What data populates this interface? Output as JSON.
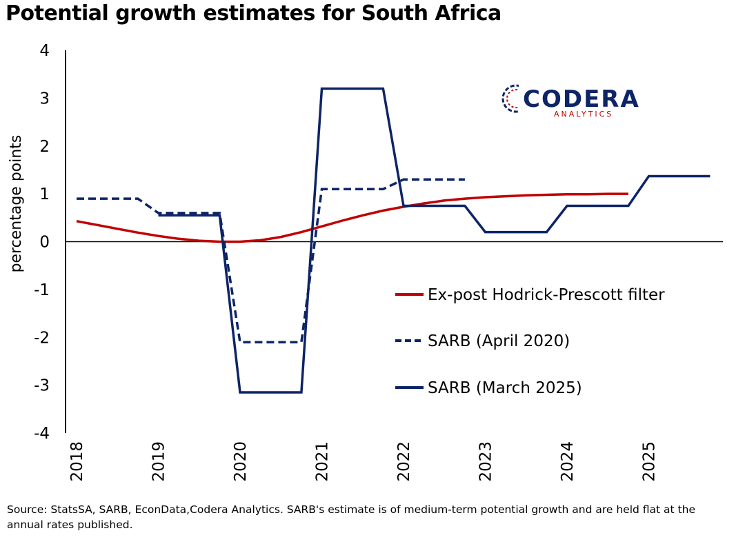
{
  "title": "Potential growth estimates for South Africa",
  "source_note": "Source: StatsSA, SARB, EconData,Codera Analytics. SARB's estimate is of medium-term potential growth and are held flat at the annual rates published.",
  "logo": {
    "main": "CODERA",
    "sub": "ANALYTICS"
  },
  "colors": {
    "hp": "#c00000",
    "sarb": "#0d2467",
    "axis": "#000000"
  },
  "chart_data": {
    "type": "line",
    "title": "Potential growth estimates for South Africa",
    "xlabel": "",
    "ylabel": "percentage points",
    "ylim": [
      -4,
      4
    ],
    "yticks": [
      4,
      3,
      2,
      1,
      0,
      -1,
      -2,
      -3,
      -4
    ],
    "xlim": [
      2018,
      2025.75
    ],
    "xticks": [
      2018,
      2019,
      2020,
      2021,
      2022,
      2023,
      2024,
      2025
    ],
    "grid": false,
    "legend_position": "bottom-right",
    "series": [
      {
        "name": "Ex-post Hodrick-Prescott filter",
        "style": "solid",
        "color": "#c00000",
        "x": [
          2018,
          2018.25,
          2018.5,
          2018.75,
          2019,
          2019.25,
          2019.5,
          2019.75,
          2020,
          2020.25,
          2020.5,
          2020.75,
          2021,
          2021.25,
          2021.5,
          2021.75,
          2022,
          2022.25,
          2022.5,
          2022.75,
          2023,
          2023.25,
          2023.5,
          2023.75,
          2024,
          2024.25,
          2024.5,
          2024.75
        ],
        "y": [
          0.43,
          0.35,
          0.27,
          0.19,
          0.12,
          0.06,
          0.02,
          0.0,
          0.0,
          0.03,
          0.1,
          0.2,
          0.32,
          0.44,
          0.55,
          0.65,
          0.73,
          0.8,
          0.86,
          0.9,
          0.93,
          0.95,
          0.97,
          0.98,
          0.99,
          0.99,
          1.0,
          1.0
        ]
      },
      {
        "name": "SARB (April 2020)",
        "style": "dashed",
        "color": "#0d2467",
        "x": [
          2018,
          2018.75,
          2019,
          2019.75,
          2020,
          2020.75,
          2021,
          2021.75,
          2022,
          2022.75
        ],
        "y": [
          0.9,
          0.9,
          0.6,
          0.6,
          -2.1,
          -2.1,
          1.1,
          1.1,
          1.3,
          1.3
        ]
      },
      {
        "name": "SARB (March 2025)",
        "style": "solid",
        "color": "#0d2467",
        "x": [
          2019,
          2019.75,
          2020,
          2020.75,
          2021,
          2021.75,
          2022,
          2022.75,
          2023,
          2023.75,
          2024,
          2024.75,
          2025,
          2025.75
        ],
        "y": [
          0.55,
          0.55,
          -3.15,
          -3.15,
          3.2,
          3.2,
          0.75,
          0.75,
          0.2,
          0.2,
          0.75,
          0.75,
          1.37,
          1.37
        ]
      }
    ]
  }
}
